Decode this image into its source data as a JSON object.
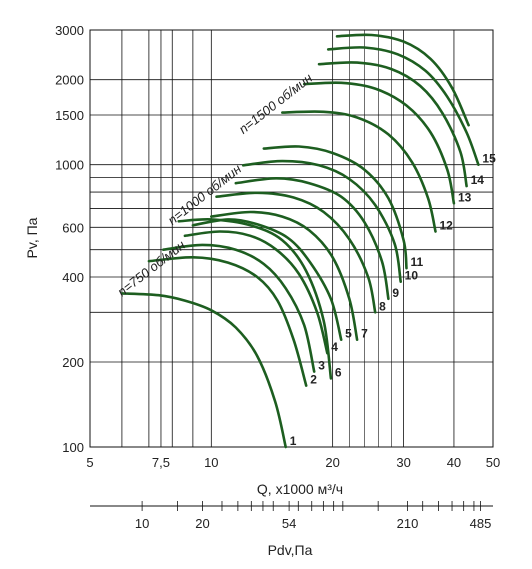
{
  "chart_data": {
    "type": "line",
    "title": "",
    "xlabel": "Q, x1000 м³/ч",
    "ylabel": "Pv, Па",
    "x_scale": "log",
    "y_scale": "log",
    "xlim": [
      5,
      50
    ],
    "ylim": [
      100,
      3000
    ],
    "x_ticks": [
      5,
      7.5,
      10,
      20,
      30,
      40,
      50
    ],
    "x_tick_labels": [
      "5",
      "7,5",
      "10",
      "20",
      "30",
      "40",
      "50"
    ],
    "y_ticks": [
      100,
      200,
      400,
      600,
      1000,
      1500,
      2000,
      3000
    ],
    "y_tick_labels": [
      "100",
      "200",
      "400",
      "600",
      "1000",
      "1500",
      "2000",
      "3000"
    ],
    "secondary_x_axis": {
      "label": "Pdv,Па",
      "ticks": [
        10,
        20,
        54,
        210,
        485
      ],
      "tick_labels": [
        "10",
        "20",
        "54",
        "210",
        "485"
      ]
    },
    "speed_labels": [
      {
        "text": "n=750 об/мин",
        "x": 6.0,
        "y": 340
      },
      {
        "text": "n=1000 об/мин",
        "x": 8.0,
        "y": 610
      },
      {
        "text": "n=1500 об/мин",
        "x": 12.0,
        "y": 1280
      }
    ],
    "series": [
      {
        "name": "1",
        "x": [
          6.0,
          7.4,
          8.6,
          10.0,
          11.5,
          13.0,
          14.4,
          15.3
        ],
        "y": [
          350,
          345,
          330,
          305,
          265,
          210,
          145,
          100
        ]
      },
      {
        "name": "2",
        "x": [
          7.0,
          9.0,
          11.0,
          13.0,
          14.6,
          16.0,
          17.2
        ],
        "y": [
          455,
          470,
          450,
          400,
          330,
          240,
          165
        ]
      },
      {
        "name": "3",
        "x": [
          7.6,
          9.5,
          11.5,
          13.5,
          15.3,
          17.0,
          18.0
        ],
        "y": [
          500,
          520,
          500,
          445,
          365,
          270,
          185
        ]
      },
      {
        "name": "4",
        "x": [
          8.6,
          10.5,
          12.5,
          14.5,
          16.5,
          18.3,
          19.4
        ],
        "y": [
          560,
          580,
          560,
          500,
          410,
          300,
          215
        ]
      },
      {
        "name": "5",
        "x": [
          9.0,
          11.0,
          13.0,
          15.5,
          17.6,
          19.8,
          21.0
        ],
        "y": [
          610,
          640,
          615,
          550,
          450,
          335,
          240
        ]
      },
      {
        "name": "6",
        "x": [
          8.3,
          10.0,
          12.5,
          15.0,
          17.2,
          19.0,
          19.8
        ],
        "y": [
          630,
          640,
          610,
          540,
          420,
          280,
          175
        ]
      },
      {
        "name": "7",
        "x": [
          10.0,
          12.5,
          15.0,
          17.5,
          20.0,
          22.0,
          23.0
        ],
        "y": [
          655,
          680,
          655,
          585,
          470,
          335,
          240
        ]
      },
      {
        "name": "8",
        "x": [
          10.3,
          13.0,
          16.0,
          19.0,
          22.0,
          24.5,
          25.5
        ],
        "y": [
          770,
          795,
          765,
          680,
          545,
          400,
          300
        ]
      },
      {
        "name": "9",
        "x": [
          11.5,
          14.5,
          17.5,
          21.0,
          24.0,
          26.5,
          27.5
        ],
        "y": [
          860,
          895,
          860,
          770,
          625,
          455,
          335
        ]
      },
      {
        "name": "10",
        "x": [
          12.0,
          15.0,
          18.5,
          22.0,
          25.5,
          28.5,
          29.5
        ],
        "y": [
          995,
          1030,
          995,
          890,
          720,
          525,
          385
        ]
      },
      {
        "name": "11",
        "x": [
          13.5,
          16.5,
          20.0,
          24.0,
          27.5,
          30.0,
          30.5
        ],
        "y": [
          1140,
          1160,
          1100,
          960,
          760,
          540,
          430
        ]
      },
      {
        "name": "12",
        "x": [
          15.0,
          19.0,
          23.0,
          27.5,
          31.5,
          34.5,
          36.0
        ],
        "y": [
          1530,
          1540,
          1470,
          1280,
          1020,
          760,
          580
        ]
      },
      {
        "name": "13",
        "x": [
          17.0,
          21.0,
          25.5,
          30.5,
          35.0,
          38.5,
          40.0
        ],
        "y": [
          1930,
          1950,
          1860,
          1620,
          1300,
          960,
          730
        ]
      },
      {
        "name": "14",
        "x": [
          18.5,
          23.0,
          28.0,
          33.0,
          37.5,
          41.5,
          43.0
        ],
        "y": [
          2270,
          2300,
          2180,
          1900,
          1520,
          1110,
          840
        ]
      },
      {
        "name": "15",
        "x": [
          19.5,
          24.0,
          29.0,
          34.0,
          38.5,
          43.0,
          46.0
        ],
        "y": [
          2560,
          2600,
          2460,
          2150,
          1740,
          1300,
          1000
        ]
      },
      {
        "name": "",
        "x": [
          20.5,
          25.0,
          30.0,
          35.0,
          39.5,
          43.5
        ],
        "y": [
          2850,
          2880,
          2730,
          2370,
          1880,
          1380
        ]
      }
    ],
    "grid": true,
    "legend": "none",
    "colors": {
      "curve": "#1d5e20",
      "grid": "#111111",
      "text": "#222222"
    }
  }
}
